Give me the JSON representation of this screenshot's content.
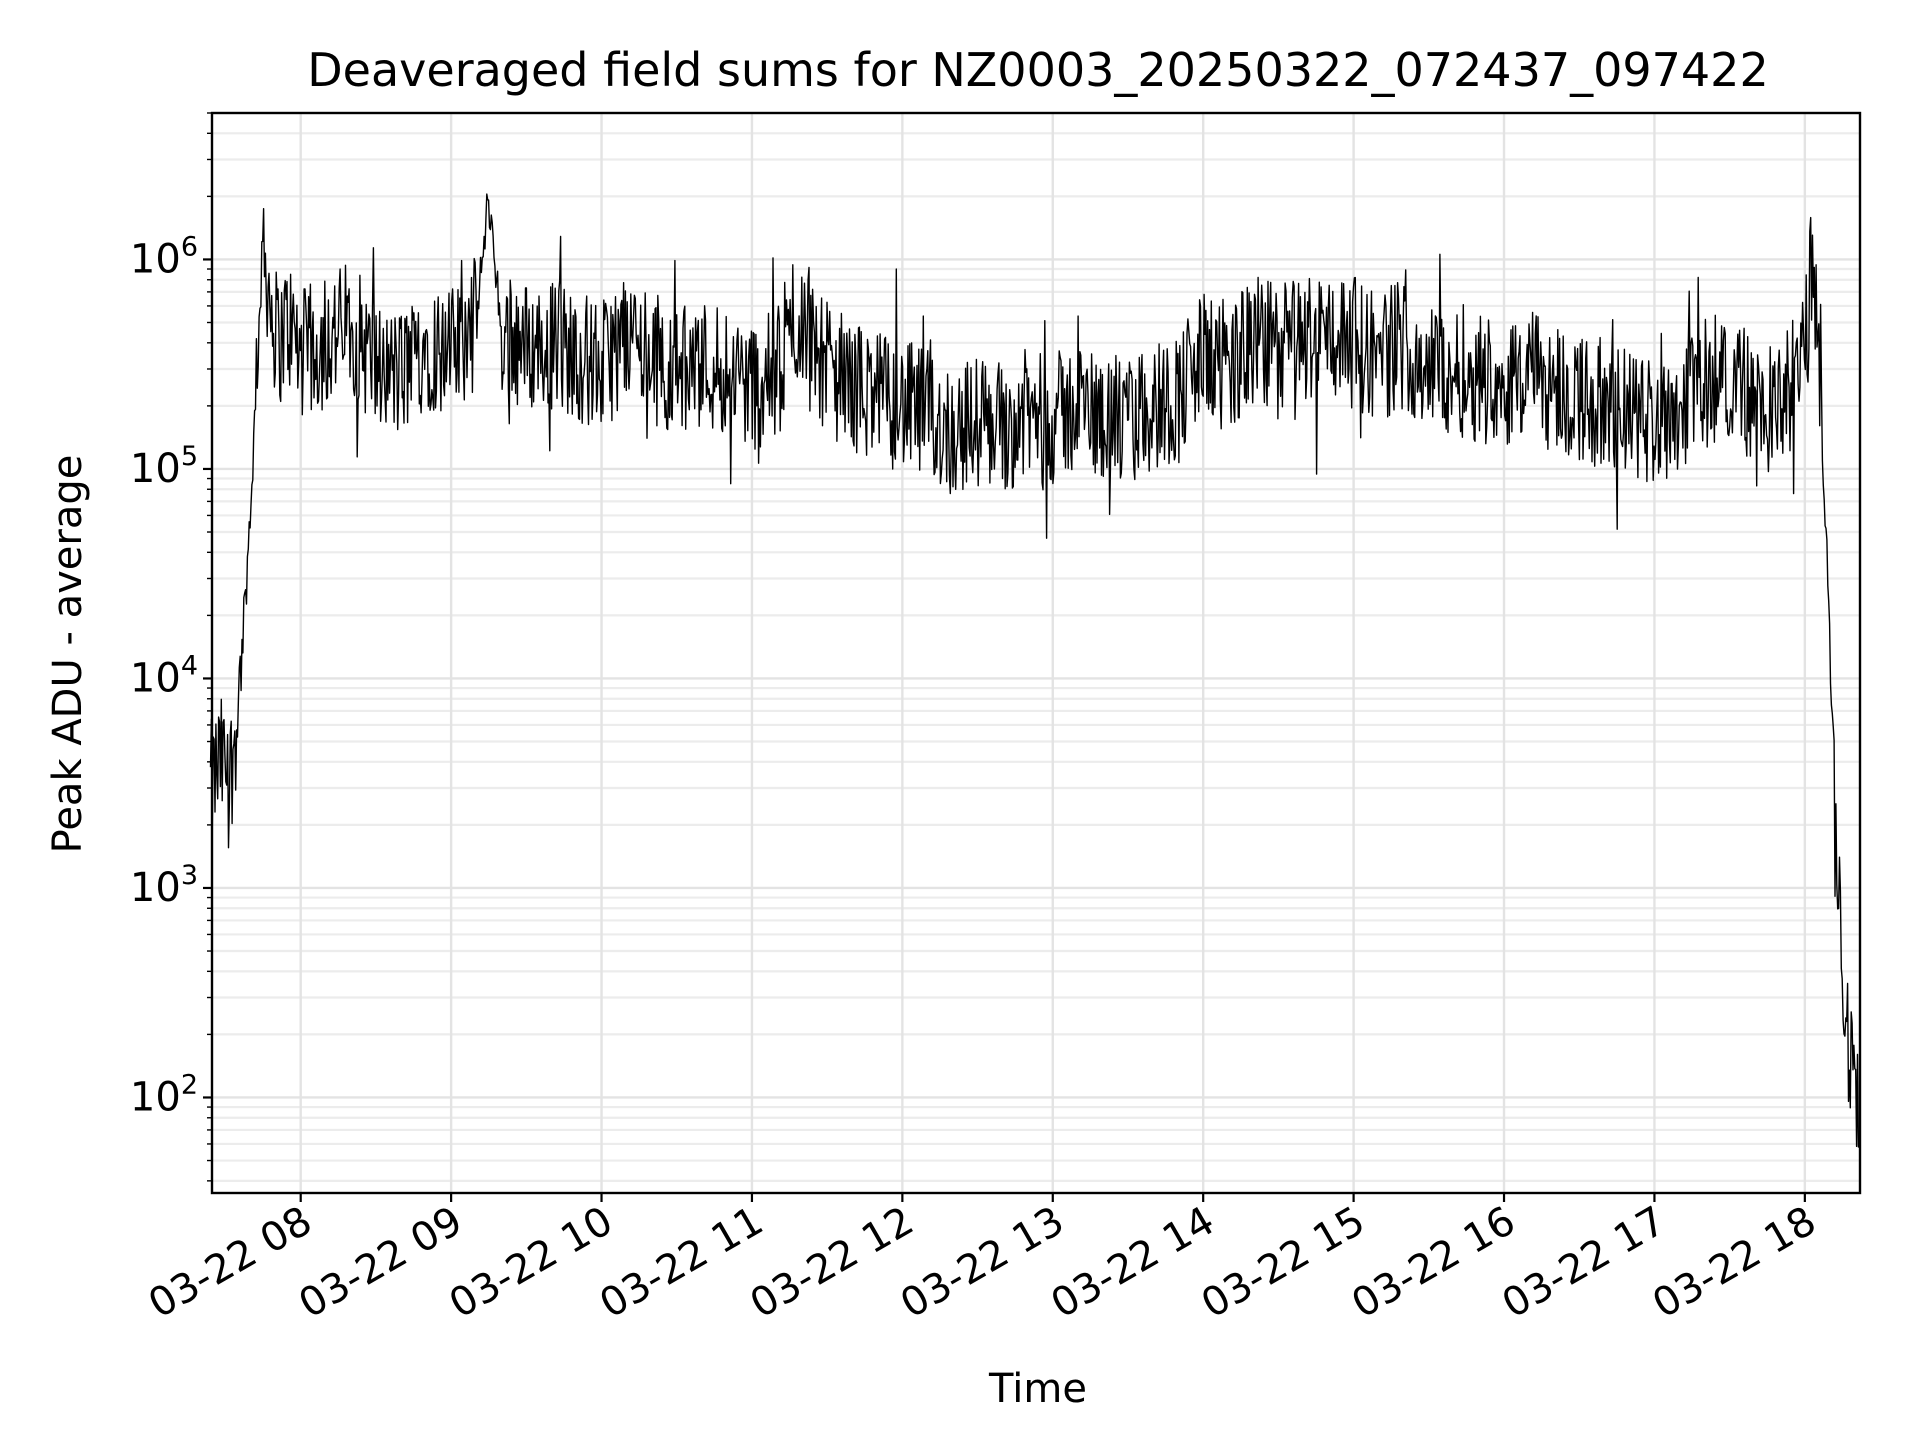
{
  "chart_data": {
    "type": "line",
    "title": "Deaveraged field sums for NZ0003_20250322_072437_097422",
    "xlabel": "Time",
    "ylabel": "Peak ADU - average",
    "yscale": "log",
    "grid": true,
    "xlim": [
      "2025-03-22 07:24:37",
      "2025-03-22 18:22:00"
    ],
    "ylim": [
      35,
      5000000
    ],
    "x_ticks": [
      {
        "value": "2025-03-22 08:00",
        "label": "03-22 08"
      },
      {
        "value": "2025-03-22 09:00",
        "label": "03-22 09"
      },
      {
        "value": "2025-03-22 10:00",
        "label": "03-22 10"
      },
      {
        "value": "2025-03-22 11:00",
        "label": "03-22 11"
      },
      {
        "value": "2025-03-22 12:00",
        "label": "03-22 12"
      },
      {
        "value": "2025-03-22 13:00",
        "label": "03-22 13"
      },
      {
        "value": "2025-03-22 14:00",
        "label": "03-22 14"
      },
      {
        "value": "2025-03-22 15:00",
        "label": "03-22 15"
      },
      {
        "value": "2025-03-22 16:00",
        "label": "03-22 16"
      },
      {
        "value": "2025-03-22 17:00",
        "label": "03-22 17"
      },
      {
        "value": "2025-03-22 18:00",
        "label": "03-22 18"
      }
    ],
    "y_ticks": [
      {
        "value": 100,
        "base": "10",
        "exp": "2"
      },
      {
        "value": 1000,
        "base": "10",
        "exp": "3"
      },
      {
        "value": 10000,
        "base": "10",
        "exp": "4"
      },
      {
        "value": 100000,
        "base": "10",
        "exp": "5"
      },
      {
        "value": 1000000,
        "base": "10",
        "exp": "6"
      }
    ],
    "series": [
      {
        "color": "#000000",
        "x": [
          "2025-03-22 07:24",
          "2025-03-22 07:28",
          "2025-03-22 07:32",
          "2025-03-22 07:36",
          "2025-03-22 07:39",
          "2025-03-22 07:42",
          "2025-03-22 07:45",
          "2025-03-22 07:48",
          "2025-03-22 07:51",
          "2025-03-22 07:55",
          "2025-03-22 08:00",
          "2025-03-22 08:10",
          "2025-03-22 08:20",
          "2025-03-22 08:30",
          "2025-03-22 08:40",
          "2025-03-22 08:50",
          "2025-03-22 09:00",
          "2025-03-22 09:10",
          "2025-03-22 09:15",
          "2025-03-22 09:20",
          "2025-03-22 09:30",
          "2025-03-22 09:40",
          "2025-03-22 09:50",
          "2025-03-22 10:00",
          "2025-03-22 10:10",
          "2025-03-22 10:20",
          "2025-03-22 10:30",
          "2025-03-22 10:40",
          "2025-03-22 10:50",
          "2025-03-22 11:00",
          "2025-03-22 11:10",
          "2025-03-22 11:20",
          "2025-03-22 11:30",
          "2025-03-22 11:40",
          "2025-03-22 11:50",
          "2025-03-22 12:00",
          "2025-03-22 12:10",
          "2025-03-22 12:20",
          "2025-03-22 12:30",
          "2025-03-22 12:40",
          "2025-03-22 12:50",
          "2025-03-22 13:00",
          "2025-03-22 13:10",
          "2025-03-22 13:20",
          "2025-03-22 13:30",
          "2025-03-22 13:40",
          "2025-03-22 13:50",
          "2025-03-22 14:00",
          "2025-03-22 14:10",
          "2025-03-22 14:20",
          "2025-03-22 14:30",
          "2025-03-22 14:40",
          "2025-03-22 14:50",
          "2025-03-22 15:00",
          "2025-03-22 15:10",
          "2025-03-22 15:20",
          "2025-03-22 15:30",
          "2025-03-22 15:40",
          "2025-03-22 15:50",
          "2025-03-22 16:00",
          "2025-03-22 16:10",
          "2025-03-22 16:20",
          "2025-03-22 16:30",
          "2025-03-22 16:40",
          "2025-03-22 16:50",
          "2025-03-22 17:00",
          "2025-03-22 17:10",
          "2025-03-22 17:20",
          "2025-03-22 17:30",
          "2025-03-22 17:40",
          "2025-03-22 17:50",
          "2025-03-22 18:00",
          "2025-03-22 18:03",
          "2025-03-22 18:06",
          "2025-03-22 18:09",
          "2025-03-22 18:12",
          "2025-03-22 18:14",
          "2025-03-22 18:16",
          "2025-03-22 18:18",
          "2025-03-22 18:20",
          "2025-03-22 18:22"
        ],
        "y": [
          3000,
          4000,
          3500,
          10000,
          40000,
          200000,
          1300000,
          600000,
          400000,
          500000,
          350000,
          400000,
          500000,
          300000,
          280000,
          400000,
          350000,
          500000,
          2000000,
          450000,
          380000,
          400000,
          350000,
          300000,
          450000,
          350000,
          280000,
          320000,
          300000,
          250000,
          280000,
          550000,
          300000,
          250000,
          220000,
          200000,
          180000,
          150000,
          170000,
          160000,
          180000,
          170000,
          200000,
          180000,
          160000,
          200000,
          220000,
          350000,
          300000,
          400000,
          380000,
          420000,
          450000,
          400000,
          350000,
          400000,
          300000,
          300000,
          280000,
          260000,
          280000,
          250000,
          220000,
          200000,
          180000,
          170000,
          200000,
          250000,
          300000,
          200000,
          180000,
          350000,
          1000000,
          300000,
          30000,
          3000,
          1000,
          300,
          150,
          100,
          60
        ]
      }
    ]
  }
}
